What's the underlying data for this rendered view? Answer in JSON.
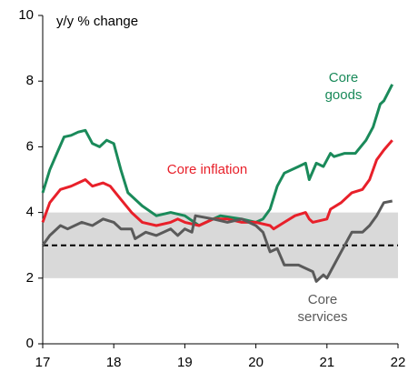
{
  "chart_data": {
    "type": "line",
    "y_label": "y/y % change",
    "xlim": [
      17,
      22
    ],
    "xticks": [
      17,
      18,
      19,
      20,
      21,
      22
    ],
    "ylim": [
      0,
      10
    ],
    "yticks": [
      0,
      2,
      4,
      6,
      8,
      10
    ],
    "shaded_range": [
      2,
      4
    ],
    "shaded_color": "#d9d9d9",
    "reference_line": 3,
    "series": [
      {
        "name": "Core goods",
        "color": "#1a8a5a",
        "x": [
          17.0,
          17.1,
          17.2,
          17.3,
          17.4,
          17.5,
          17.6,
          17.7,
          17.8,
          17.9,
          18.0,
          18.1,
          18.2,
          18.4,
          18.6,
          18.8,
          19.0,
          19.2,
          19.4,
          19.5,
          19.8,
          20.0,
          20.1,
          20.2,
          20.3,
          20.4,
          20.6,
          20.7,
          20.75,
          20.85,
          20.95,
          21.05,
          21.1,
          21.25,
          21.4,
          21.55,
          21.65,
          21.75,
          21.8,
          21.92
        ],
        "values": [
          4.6,
          5.3,
          5.8,
          6.3,
          6.35,
          6.45,
          6.5,
          6.1,
          6.0,
          6.2,
          6.1,
          5.3,
          4.6,
          4.2,
          3.9,
          4.0,
          3.9,
          3.6,
          3.8,
          3.9,
          3.8,
          3.7,
          3.8,
          4.1,
          4.8,
          5.2,
          5.4,
          5.5,
          5.0,
          5.5,
          5.4,
          5.8,
          5.7,
          5.8,
          5.8,
          6.2,
          6.6,
          7.3,
          7.4,
          7.9
        ]
      },
      {
        "name": "Core inflation",
        "color": "#e8202a",
        "x": [
          17.0,
          17.1,
          17.25,
          17.4,
          17.6,
          17.7,
          17.85,
          17.95,
          18.1,
          18.25,
          18.4,
          18.6,
          18.8,
          18.9,
          19.0,
          19.2,
          19.4,
          19.6,
          19.8,
          20.0,
          20.2,
          20.25,
          20.4,
          20.55,
          20.7,
          20.75,
          20.8,
          21.0,
          21.05,
          21.2,
          21.35,
          21.5,
          21.6,
          21.7,
          21.8,
          21.92
        ],
        "values": [
          3.7,
          4.3,
          4.7,
          4.8,
          5.0,
          4.8,
          4.9,
          4.8,
          4.4,
          4.0,
          3.7,
          3.6,
          3.7,
          3.8,
          3.7,
          3.6,
          3.8,
          3.8,
          3.7,
          3.7,
          3.6,
          3.5,
          3.7,
          3.9,
          4.0,
          3.8,
          3.7,
          3.8,
          4.1,
          4.3,
          4.6,
          4.7,
          5.0,
          5.6,
          5.9,
          6.2
        ]
      },
      {
        "name": "Core services",
        "color": "#5a5a5a",
        "x": [
          17.0,
          17.1,
          17.25,
          17.35,
          17.55,
          17.7,
          17.85,
          18.0,
          18.1,
          18.25,
          18.3,
          18.45,
          18.6,
          18.8,
          18.9,
          19.0,
          19.1,
          19.15,
          19.4,
          19.6,
          19.8,
          20.0,
          20.1,
          20.2,
          20.3,
          20.4,
          20.6,
          20.7,
          20.8,
          20.85,
          20.95,
          21.0,
          21.1,
          21.2,
          21.35,
          21.5,
          21.6,
          21.7,
          21.8,
          21.92
        ],
        "values": [
          3.0,
          3.3,
          3.6,
          3.5,
          3.7,
          3.6,
          3.8,
          3.7,
          3.5,
          3.5,
          3.2,
          3.4,
          3.3,
          3.5,
          3.3,
          3.5,
          3.4,
          3.9,
          3.8,
          3.7,
          3.8,
          3.6,
          3.4,
          2.8,
          2.9,
          2.4,
          2.4,
          2.3,
          2.2,
          1.9,
          2.1,
          2.0,
          2.4,
          2.8,
          3.4,
          3.4,
          3.6,
          3.9,
          4.3,
          4.35
        ]
      }
    ]
  }
}
